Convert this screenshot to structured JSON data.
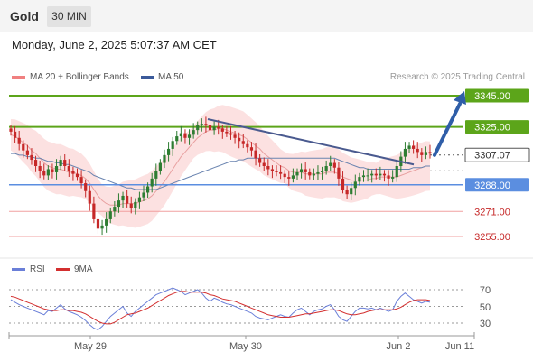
{
  "header": {
    "title": "Gold",
    "timeframe": "30 MIN"
  },
  "datetime": "Monday, June 2, 2025 5:07:37 AM CET",
  "legend": {
    "bollinger": "MA 20 + Bollinger Bands",
    "ma50": "MA 50",
    "credit": "Research © 2025 Trading Central"
  },
  "rsi_legend": {
    "rsi": "RSI",
    "ma9": "9MA"
  },
  "colors": {
    "up": "#2e7d32",
    "down": "#c62828",
    "band": "#fbdcdc",
    "ma20": "#e8a0a0",
    "ma50": "#6a84b0",
    "trend": "#4a5a8f",
    "green_level": "#5ca51a",
    "blue_level": "#5b8ee0",
    "red_level": "#c62828",
    "rsi": "#6a7fd8",
    "rsi_ma": "#d32f2f",
    "arrow": "#2f5ea8"
  },
  "chart_data": [
    {
      "type": "candlestick",
      "title": "Gold",
      "timeframe": "30 MIN",
      "x_ticks": [
        "May 29",
        "May 30",
        "Jun 2",
        "Jun 11"
      ],
      "ylim": [
        3240,
        3352
      ],
      "price_labels": [
        {
          "value": 3345.0,
          "label": "3345.00",
          "kind": "target-green"
        },
        {
          "value": 3325.0,
          "label": "3325.00",
          "kind": "resistance-green"
        },
        {
          "value": 3307.07,
          "label": "3307.07",
          "kind": "current"
        },
        {
          "value": 3288.0,
          "label": "3288.00",
          "kind": "pivot-blue"
        },
        {
          "value": 3271.0,
          "label": "3271.00",
          "kind": "support-red"
        },
        {
          "value": 3255.0,
          "label": "3255.00",
          "kind": "support-red"
        }
      ],
      "trendline": {
        "start": 3330,
        "end": 3301
      },
      "arrow": {
        "from": 3307,
        "to": 3345
      },
      "close_series": [
        3322,
        3318,
        3314,
        3310,
        3307,
        3304,
        3300,
        3297,
        3294,
        3298,
        3296,
        3300,
        3304,
        3300,
        3297,
        3295,
        3293,
        3289,
        3284,
        3276,
        3266,
        3260,
        3262,
        3266,
        3271,
        3274,
        3278,
        3281,
        3276,
        3273,
        3277,
        3280,
        3283,
        3287,
        3292,
        3297,
        3302,
        3307,
        3311,
        3316,
        3319,
        3321,
        3318,
        3320,
        3323,
        3326,
        3327,
        3326,
        3323,
        3325,
        3324,
        3322,
        3321,
        3320,
        3318,
        3316,
        3314,
        3312,
        3310,
        3305,
        3302,
        3300,
        3298,
        3297,
        3296,
        3295,
        3293,
        3292,
        3294,
        3296,
        3298,
        3296,
        3294,
        3295,
        3296,
        3297,
        3300,
        3302,
        3299,
        3292,
        3285,
        3282,
        3286,
        3290,
        3293,
        3294,
        3294,
        3295,
        3294,
        3295,
        3294,
        3292,
        3293,
        3300,
        3306,
        3311,
        3313,
        3311,
        3309,
        3307,
        3309,
        3308
      ],
      "ma20": [
        3320,
        3319,
        3317,
        3315,
        3313,
        3310,
        3308,
        3305,
        3302,
        3300,
        3299,
        3298,
        3298,
        3297,
        3296,
        3296,
        3295,
        3294,
        3292,
        3289,
        3285,
        3281,
        3278,
        3276,
        3275,
        3275,
        3275,
        3276,
        3276,
        3276,
        3276,
        3277,
        3278,
        3279,
        3281,
        3284,
        3287,
        3290,
        3294,
        3298,
        3302,
        3306,
        3309,
        3312,
        3315,
        3318,
        3320,
        3322,
        3323,
        3323,
        3324,
        3324,
        3323,
        3322,
        3321,
        3320,
        3319,
        3317,
        3315,
        3313,
        3311,
        3308,
        3306,
        3304,
        3302,
        3300,
        3299,
        3297,
        3296,
        3296,
        3296,
        3295,
        3295,
        3295,
        3295,
        3295,
        3296,
        3296,
        3296,
        3295,
        3293,
        3292,
        3291,
        3291,
        3291,
        3291,
        3291,
        3292,
        3292,
        3293,
        3293,
        3293,
        3293,
        3293,
        3294,
        3295,
        3296,
        3297,
        3298,
        3299,
        3300,
        3300
      ],
      "ma50": [
        3308,
        3308,
        3307,
        3307,
        3306,
        3306,
        3305,
        3305,
        3304,
        3303,
        3303,
        3302,
        3302,
        3301,
        3301,
        3300,
        3299,
        3298,
        3297,
        3296,
        3294,
        3293,
        3292,
        3291,
        3290,
        3289,
        3288,
        3287,
        3286,
        3286,
        3285,
        3285,
        3285,
        3285,
        3285,
        3285,
        3286,
        3287,
        3288,
        3289,
        3290,
        3291,
        3292,
        3293,
        3294,
        3295,
        3296,
        3297,
        3298,
        3299,
        3300,
        3301,
        3302,
        3303,
        3303,
        3304,
        3304,
        3305,
        3305,
        3305,
        3305,
        3305,
        3305,
        3305,
        3305,
        3305,
        3305,
        3305,
        3305,
        3305,
        3305,
        3305,
        3305,
        3305,
        3305,
        3305,
        3305,
        3305,
        3305,
        3304,
        3303,
        3302,
        3301,
        3300,
        3299,
        3299,
        3298,
        3298,
        3298,
        3298,
        3298,
        3298,
        3298,
        3298,
        3298,
        3298,
        3298,
        3299,
        3299,
        3299,
        3300,
        3300
      ],
      "band_width": 10
    },
    {
      "type": "line",
      "title": "RSI",
      "yticks": [
        "70",
        "50",
        "30"
      ],
      "ylim": [
        20,
        80
      ],
      "series": [
        {
          "name": "RSI",
          "values": [
            58,
            55,
            52,
            50,
            48,
            46,
            44,
            42,
            40,
            45,
            44,
            48,
            52,
            47,
            44,
            42,
            40,
            37,
            33,
            28,
            24,
            22,
            26,
            32,
            38,
            42,
            46,
            50,
            42,
            38,
            44,
            48,
            52,
            56,
            60,
            64,
            66,
            68,
            70,
            72,
            70,
            68,
            64,
            66,
            68,
            70,
            66,
            60,
            56,
            60,
            58,
            55,
            53,
            52,
            50,
            48,
            46,
            44,
            42,
            38,
            36,
            35,
            34,
            36,
            38,
            40,
            38,
            37,
            42,
            46,
            48,
            44,
            40,
            44,
            46,
            47,
            50,
            52,
            46,
            38,
            34,
            32,
            38,
            44,
            48,
            48,
            47,
            48,
            46,
            48,
            46,
            44,
            46,
            56,
            62,
            66,
            62,
            58,
            56,
            54,
            56,
            55
          ]
        },
        {
          "name": "9MA",
          "values": [
            62,
            61,
            59,
            57,
            55,
            53,
            51,
            49,
            47,
            46,
            45,
            45,
            46,
            46,
            45,
            45,
            44,
            43,
            41,
            38,
            35,
            32,
            30,
            29,
            29,
            31,
            34,
            37,
            40,
            41,
            42,
            44,
            46,
            48,
            51,
            54,
            57,
            60,
            63,
            65,
            67,
            68,
            68,
            67,
            67,
            67,
            67,
            66,
            64,
            63,
            61,
            59,
            58,
            57,
            56,
            54,
            52,
            50,
            48,
            46,
            44,
            42,
            40,
            39,
            38,
            37,
            37,
            37,
            38,
            39,
            40,
            41,
            41,
            42,
            43,
            44,
            45,
            46,
            46,
            45,
            43,
            41,
            40,
            40,
            41,
            42,
            44,
            45,
            46,
            46,
            46,
            46,
            46,
            47,
            49,
            52,
            55,
            57,
            58,
            58,
            58,
            57
          ]
        }
      ]
    }
  ]
}
